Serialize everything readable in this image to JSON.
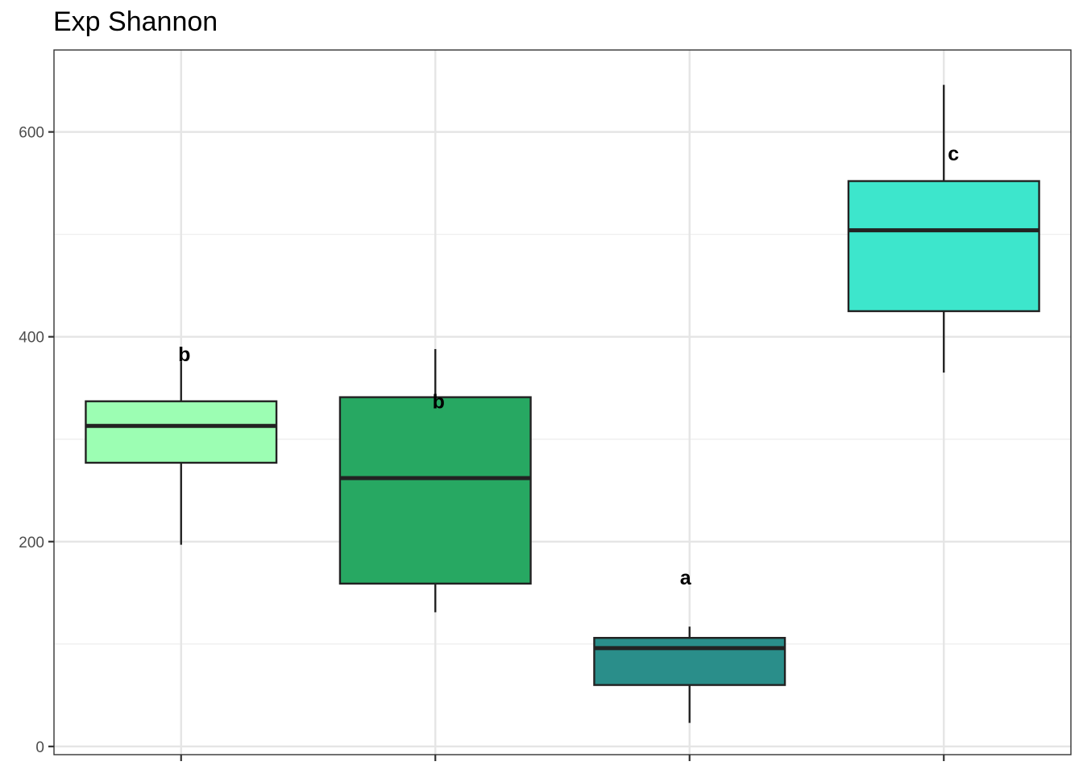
{
  "chart_data": {
    "type": "box",
    "title": "Exp Shannon",
    "xlabel": "",
    "ylabel": "",
    "ylim": [
      -8,
      680
    ],
    "y_ticks": [
      0,
      200,
      400,
      600
    ],
    "y_minor_ticks": [
      100,
      300,
      500
    ],
    "x_tick_labels": [
      "",
      "",
      "",
      ""
    ],
    "grid": true,
    "legend": "none",
    "boxes": [
      {
        "min": 197,
        "q1": 277,
        "median": 313,
        "q3": 337,
        "max": 376,
        "color": "#9cfeb3",
        "label": "b"
      },
      {
        "min": 131,
        "q1": 159,
        "median": 262,
        "q3": 341,
        "max": 388,
        "color": "#27a862",
        "label": "b"
      },
      {
        "min": 23,
        "q1": 60,
        "median": 96,
        "q3": 106,
        "max": 117,
        "color": "#2a8e8a",
        "label": "a"
      },
      {
        "min": 365,
        "q1": 425,
        "median": 504,
        "q3": 552,
        "max": 646,
        "color": "#3de6cc",
        "label": "c"
      }
    ]
  }
}
